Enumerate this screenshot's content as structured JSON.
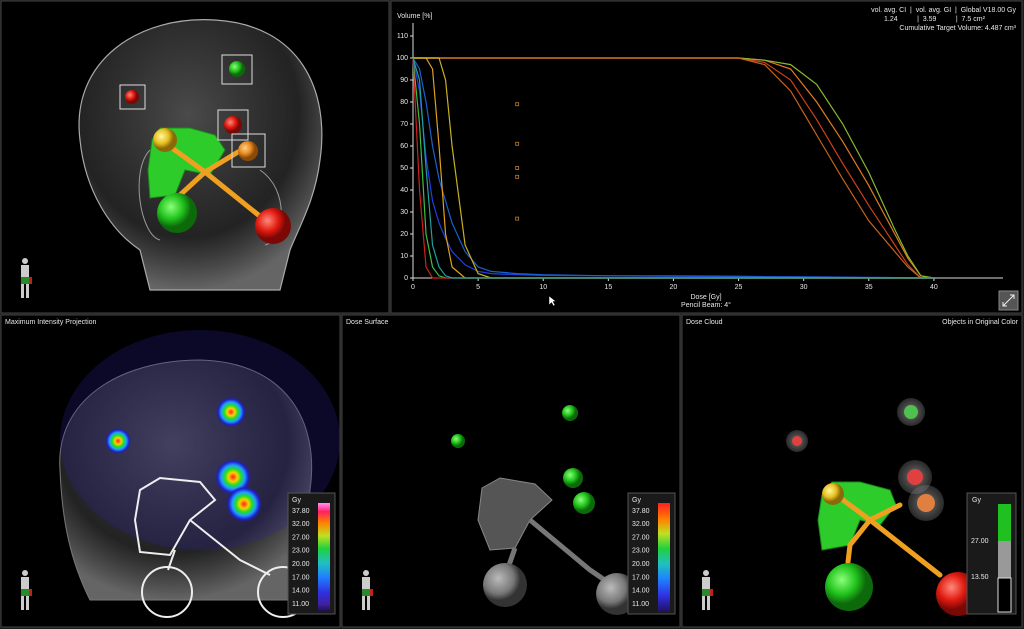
{
  "chart_data": {
    "type": "line",
    "ylabel": "Volume [%]",
    "xlabel": "Dose [Gy]",
    "note": "Pencil Beam: 4°",
    "annotations": [
      "vol. avg. CI  |  vol. avg. GI  |  Global V18.00 Gy",
      "1.24          |  3.59          |  7.5 cm²",
      "Cumulative Target Volume: 4.487 cm³"
    ],
    "x": [
      0,
      0.5,
      1,
      1.5,
      2,
      2.5,
      3,
      4,
      5,
      6,
      8,
      10,
      15,
      20,
      25,
      27,
      29,
      31,
      33,
      35,
      37,
      38,
      39,
      40
    ],
    "xlim": [
      0,
      45
    ],
    "ylim": [
      0,
      115
    ],
    "xticks": [
      0,
      5,
      10,
      15,
      20,
      25,
      30,
      35,
      40
    ],
    "yticks": [
      0,
      10,
      20,
      30,
      40,
      50,
      60,
      70,
      80,
      90,
      100,
      110
    ],
    "grid": false,
    "series": [
      {
        "color": "#e07b20",
        "values": [
          100,
          100,
          100,
          100,
          100,
          100,
          100,
          100,
          100,
          100,
          100,
          100,
          100,
          100,
          100,
          99,
          95,
          80,
          62,
          42,
          20,
          9,
          1,
          0
        ]
      },
      {
        "color": "#d0401c",
        "values": [
          100,
          100,
          100,
          100,
          100,
          100,
          100,
          100,
          100,
          100,
          100,
          100,
          100,
          100,
          100,
          98,
          90,
          72,
          52,
          33,
          15,
          6,
          0,
          0
        ]
      },
      {
        "color": "#8ab830",
        "values": [
          100,
          100,
          100,
          100,
          100,
          100,
          100,
          100,
          100,
          100,
          100,
          100,
          100,
          100,
          100,
          99,
          97,
          88,
          70,
          48,
          22,
          10,
          1,
          0
        ]
      },
      {
        "color": "#c8641a",
        "values": [
          100,
          100,
          100,
          100,
          100,
          100,
          100,
          100,
          100,
          100,
          100,
          100,
          100,
          100,
          100,
          97,
          85,
          65,
          45,
          26,
          12,
          5,
          0,
          0
        ]
      },
      {
        "color": "#2040e0",
        "values": [
          100,
          85,
          55,
          35,
          25,
          18,
          12,
          6,
          3,
          2,
          1.5,
          1.2,
          1,
          0.8,
          0.6,
          0.5,
          0.5,
          0.5,
          0.4,
          0.3,
          0.2,
          0.1,
          0,
          0
        ]
      },
      {
        "color": "#1a60d0",
        "values": [
          100,
          95,
          80,
          60,
          45,
          35,
          25,
          12,
          5,
          3,
          2,
          1.5,
          1,
          1,
          0.8,
          0.6,
          0.5,
          0.4,
          0.3,
          0.2,
          0.1,
          0,
          0,
          0
        ]
      },
      {
        "color": "#40c040",
        "values": [
          100,
          70,
          20,
          5,
          1,
          0,
          0,
          0,
          0,
          0,
          0,
          0,
          0,
          0,
          0,
          0,
          0,
          0,
          0,
          0,
          0,
          0,
          0,
          0
        ]
      },
      {
        "color": "#e0a020",
        "values": [
          100,
          100,
          100,
          95,
          60,
          20,
          5,
          0,
          0,
          0,
          0,
          0,
          0,
          0,
          0,
          0,
          0,
          0,
          0,
          0,
          0,
          0,
          0,
          0
        ]
      },
      {
        "color": "#c8b020",
        "values": [
          100,
          100,
          100,
          100,
          100,
          90,
          60,
          15,
          2,
          0,
          0,
          0,
          0,
          0,
          0,
          0,
          0,
          0,
          0,
          0,
          0,
          0,
          0,
          0
        ]
      },
      {
        "color": "#d02020",
        "values": [
          100,
          40,
          5,
          0,
          0,
          0,
          0,
          0,
          0,
          0,
          0,
          0,
          0,
          0,
          0,
          0,
          0,
          0,
          0,
          0,
          0,
          0,
          0,
          0
        ]
      },
      {
        "color": "#20a0a0",
        "values": [
          100,
          90,
          50,
          15,
          5,
          1,
          0,
          0,
          0,
          0,
          0,
          0,
          0,
          0,
          0,
          0,
          0,
          0,
          0,
          0,
          0,
          0,
          0,
          0
        ]
      },
      {
        "color": "#c08030",
        "mode": "markers",
        "x": [
          8,
          8,
          8,
          8,
          8
        ],
        "values": [
          79,
          61,
          50,
          46,
          27
        ]
      }
    ]
  },
  "views": [
    {
      "title": "Maximum Intensity Projection",
      "colorbar": {
        "unit": "Gy",
        "labels": [
          "37.80",
          "32.00",
          "27.00",
          "23.00",
          "20.00",
          "17.00",
          "14.00",
          "11.00"
        ]
      }
    },
    {
      "title": "Dose Surface",
      "colorbar": {
        "unit": "Gy",
        "labels": [
          "37.80",
          "32.00",
          "27.00",
          "23.00",
          "20.00",
          "17.00",
          "14.00",
          "11.00"
        ]
      }
    },
    {
      "title": "Dose Cloud",
      "title_right": "Objects in Original Color",
      "colorbar": {
        "unit": "Gy",
        "labels": [
          "27.00",
          "13.50"
        ]
      }
    }
  ]
}
